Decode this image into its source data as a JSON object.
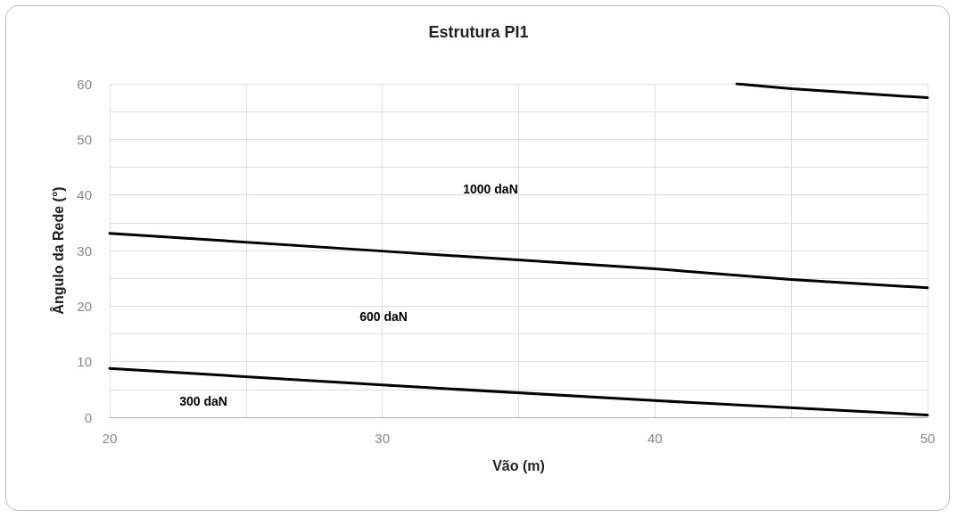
{
  "chart_data": {
    "type": "line",
    "title": "Estrutura PI1",
    "xlabel": "Vão (m)",
    "ylabel": "Ângulo da Rede (°)",
    "xlim": [
      20,
      50
    ],
    "xticks": [
      20,
      {
        "value": 25,
        "label": null
      },
      30,
      {
        "value": 35,
        "label": null
      },
      40,
      {
        "value": 45,
        "label": null
      },
      50
    ],
    "ylim": [
      0,
      60
    ],
    "yticks": [
      0,
      {
        "value": 5,
        "label": null
      },
      10,
      {
        "value": 15,
        "label": null
      },
      20,
      {
        "value": 25,
        "label": null
      },
      30,
      {
        "value": 35,
        "label": null
      },
      40,
      {
        "value": 45,
        "label": null
      },
      50,
      {
        "value": 55,
        "label": null
      },
      60
    ],
    "grid": true,
    "marker": "none",
    "line_style": "solid",
    "series": [
      {
        "color": "#000000",
        "x": [
          20,
          30,
          40,
          50
        ],
        "values": [
          8.8,
          5.8,
          3.0,
          0.4
        ]
      },
      {
        "color": "#000000",
        "x": [
          20,
          30,
          40,
          45,
          50
        ],
        "values": [
          33.1,
          29.9,
          26.7,
          24.8,
          23.3
        ]
      },
      {
        "color": "#000000",
        "x": [
          43,
          45,
          50
        ],
        "values": [
          60,
          59.1,
          57.5
        ]
      }
    ],
    "annotations": [
      "1000 daN",
      "600 daN",
      "300 daN"
    ]
  }
}
